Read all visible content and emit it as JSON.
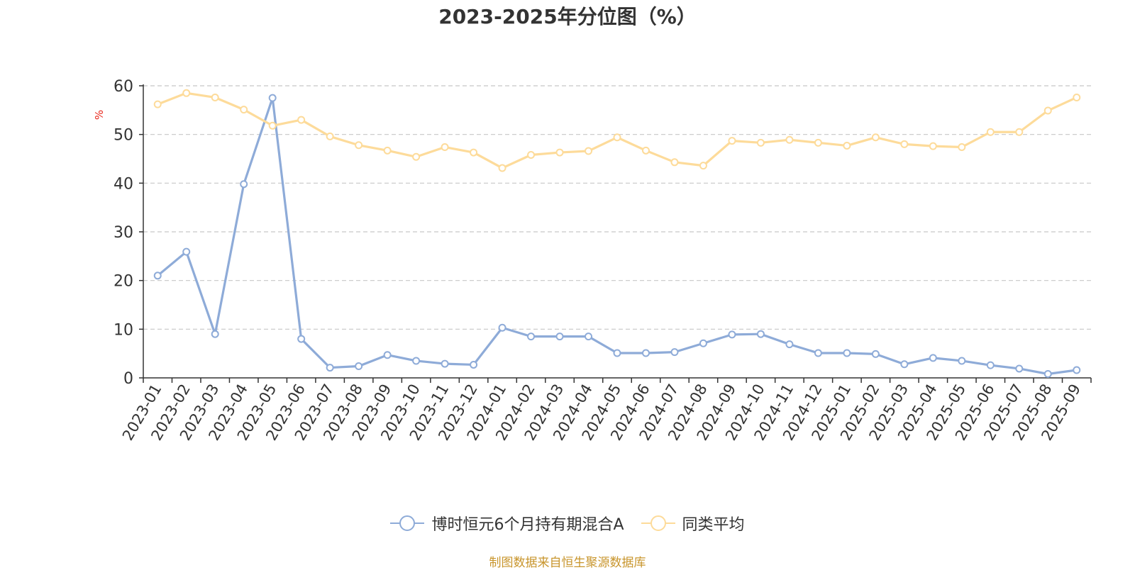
{
  "chart_data": {
    "type": "line",
    "title": "2023-2025年分位图（%）",
    "ylabel": "%",
    "ylim": [
      0,
      60
    ],
    "yticks": [
      0,
      10,
      20,
      30,
      40,
      50,
      60
    ],
    "grid": true,
    "legend_position": "bottom",
    "categories": [
      "2023-01",
      "2023-02",
      "2023-03",
      "2023-04",
      "2023-05",
      "2023-06",
      "2023-07",
      "2023-08",
      "2023-09",
      "2023-10",
      "2023-11",
      "2023-12",
      "2024-01",
      "2024-02",
      "2024-03",
      "2024-04",
      "2024-05",
      "2024-06",
      "2024-07",
      "2024-08",
      "2024-09",
      "2024-10",
      "2024-11",
      "2024-12",
      "2025-01",
      "2025-02",
      "2025-03",
      "2025-04",
      "2025-05",
      "2025-06",
      "2025-07",
      "2025-08",
      "2025-09"
    ],
    "series": [
      {
        "name": "博时恒元6个月持有期混合A",
        "color": "#8eabd8",
        "values": [
          21,
          25.9,
          9,
          39.8,
          57.5,
          8,
          2.1,
          2.4,
          4.7,
          3.5,
          2.9,
          2.7,
          10.3,
          8.5,
          8.5,
          8.5,
          5.1,
          5.1,
          5.3,
          7.1,
          8.9,
          9.0,
          6.9,
          5.1,
          5.1,
          4.9,
          2.8,
          4.1,
          3.5,
          2.6,
          1.9,
          0.8,
          1.6
        ]
      },
      {
        "name": "同类平均",
        "color": "#fddb9a",
        "values": [
          56.2,
          58.5,
          57.6,
          55.1,
          51.8,
          53.0,
          49.6,
          47.8,
          46.7,
          45.4,
          47.4,
          46.3,
          43.1,
          45.8,
          46.3,
          46.6,
          49.4,
          46.7,
          44.3,
          43.6,
          48.7,
          48.3,
          48.9,
          48.3,
          47.7,
          49.4,
          48.0,
          47.6,
          47.4,
          50.5,
          50.5,
          54.9,
          57.6
        ]
      }
    ]
  },
  "source_note": "制图数据来自恒生聚源数据库"
}
